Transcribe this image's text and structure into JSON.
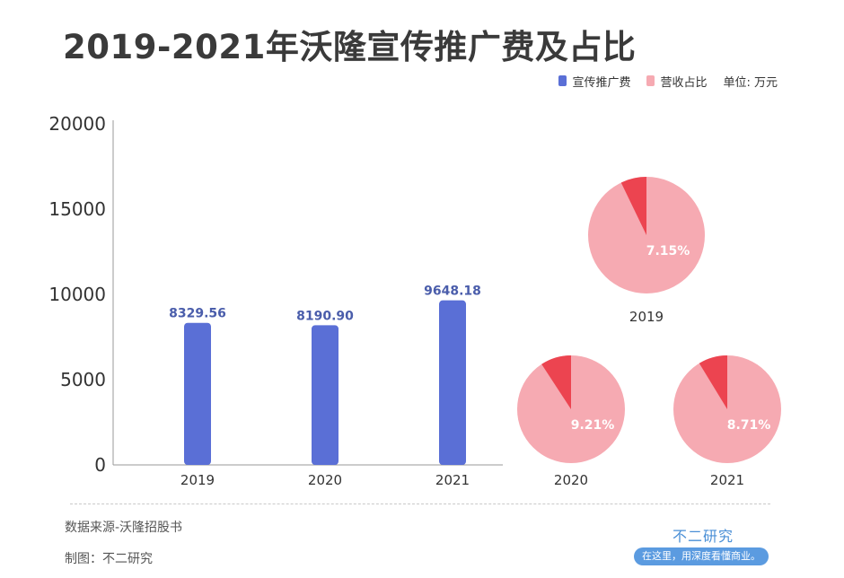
{
  "title": "2019-2021年沃隆宣传推广费及占比",
  "legend": {
    "series1": "宣传推广费",
    "series2": "营收占比",
    "unit": "单位: 万元"
  },
  "colors": {
    "bar": "#5a6fd6",
    "bar_label": "#4a5dab",
    "pie_main": "#f6aab2",
    "pie_slice": "#ec4450",
    "axis_text": "#333333"
  },
  "chart_data": [
    {
      "type": "bar",
      "categories": [
        "2019",
        "2020",
        "2021"
      ],
      "series": [
        {
          "name": "宣传推广费",
          "values": [
            8329.56,
            8190.9,
            9648.18
          ]
        }
      ],
      "value_labels": [
        "8329.56",
        "8190.90",
        "9648.18"
      ],
      "ylim": [
        0,
        20000
      ],
      "yticks": [
        0,
        5000,
        10000,
        15000,
        20000
      ],
      "grid": false,
      "legend_position": "top-right"
    },
    {
      "type": "pie",
      "series_name": "营收占比",
      "charts": [
        {
          "label": "2019",
          "share": 7.15,
          "share_label": "7.15%"
        },
        {
          "label": "2020",
          "share": 9.21,
          "share_label": "9.21%"
        },
        {
          "label": "2021",
          "share": 8.71,
          "share_label": "8.71%"
        }
      ]
    }
  ],
  "footer": {
    "source": "数据来源-沃隆招股书",
    "maker": "制图：不二研究",
    "brand": "不二研究",
    "brand_tagline": "在这里，用深度看懂商业。"
  }
}
